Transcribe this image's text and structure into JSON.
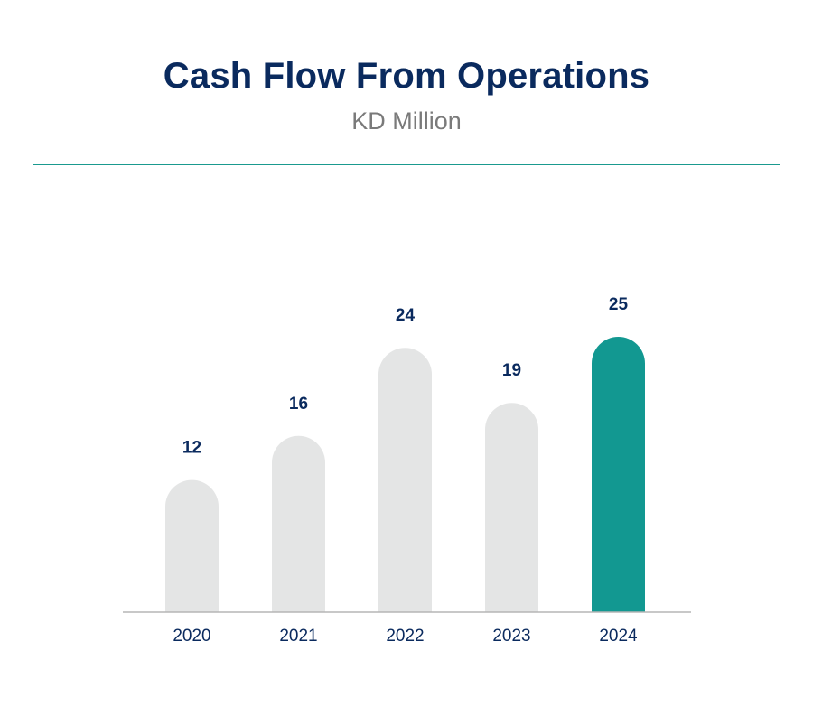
{
  "header": {
    "title": "Cash Flow From Operations",
    "subtitle": "KD Million"
  },
  "colors": {
    "bar_default": "#e4e5e5",
    "bar_highlight": "#129891",
    "axis": "#b5b5b5",
    "label": "#0a2a5e",
    "divider": "#1a9a8f"
  },
  "chart_data": {
    "type": "bar",
    "title": "Cash Flow From Operations",
    "subtitle": "KD Million",
    "categories": [
      "2020",
      "2021",
      "2022",
      "2023",
      "2024"
    ],
    "values": [
      12,
      16,
      24,
      19,
      25
    ],
    "value_labels": [
      "12",
      "16",
      "24",
      "19",
      "25"
    ],
    "highlight_index": 4,
    "ylim": [
      0,
      25
    ],
    "grid": false,
    "legend": "none"
  }
}
